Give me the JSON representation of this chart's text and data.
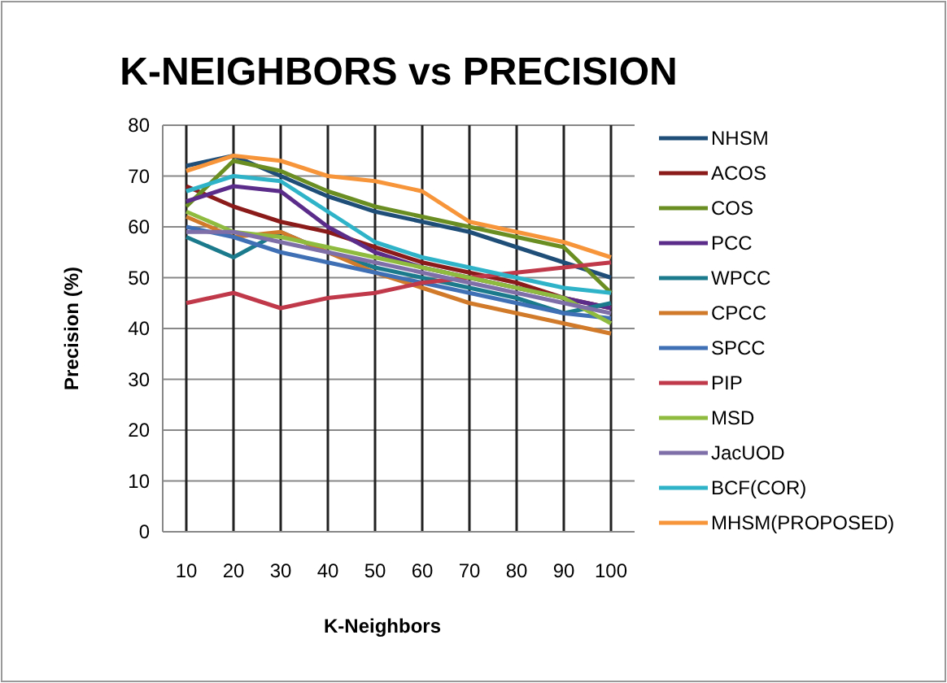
{
  "chart_data": {
    "type": "line",
    "title": "K-NEIGHBORS vs PRECISION",
    "xlabel": "K-Neighbors",
    "ylabel": "Precision (%)",
    "categories": [
      "10",
      "20",
      "30",
      "40",
      "50",
      "60",
      "70",
      "80",
      "90",
      "100"
    ],
    "ylim": [
      0,
      80
    ],
    "yticks": [
      0,
      10,
      20,
      30,
      40,
      50,
      60,
      70,
      80
    ],
    "grid": true,
    "legend": "right",
    "marker": "none",
    "line_style": "solid",
    "series": [
      {
        "name": "NHSM",
        "color": "#1f4e79",
        "values": [
          72,
          74,
          70,
          66,
          63,
          61,
          59,
          56,
          53,
          50
        ]
      },
      {
        "name": "ACOS",
        "color": "#8b1a1a",
        "values": [
          68,
          64,
          61,
          59,
          56,
          53,
          51,
          49,
          46,
          44
        ]
      },
      {
        "name": "COS",
        "color": "#6b8e23",
        "values": [
          64,
          73,
          71,
          67,
          64,
          62,
          60,
          58,
          56,
          47
        ]
      },
      {
        "name": "PCC",
        "color": "#5b2c8a",
        "values": [
          65,
          68,
          67,
          60,
          55,
          52,
          50,
          48,
          46,
          44
        ]
      },
      {
        "name": "WPCC",
        "color": "#1b7a8c",
        "values": [
          58,
          54,
          59,
          55,
          52,
          50,
          48,
          46,
          43,
          45
        ]
      },
      {
        "name": "CPCC",
        "color": "#d07a2a",
        "values": [
          62,
          58,
          59,
          55,
          51,
          48,
          45,
          43,
          41,
          39
        ]
      },
      {
        "name": "SPCC",
        "color": "#3f6fb5",
        "values": [
          60,
          58,
          55,
          53,
          51,
          49,
          47,
          45,
          43,
          42
        ]
      },
      {
        "name": "PIP",
        "color": "#c0394a",
        "values": [
          45,
          47,
          44,
          46,
          47,
          49,
          50,
          51,
          52,
          53
        ]
      },
      {
        "name": "MSD",
        "color": "#8fbc3f",
        "values": [
          63,
          59,
          58,
          56,
          54,
          52,
          50,
          48,
          46,
          41
        ]
      },
      {
        "name": "JacUOD",
        "color": "#7e6fa8",
        "values": [
          59,
          59,
          57,
          55,
          53,
          51,
          49,
          47,
          45,
          43
        ]
      },
      {
        "name": "BCF(COR)",
        "color": "#2fb3c9",
        "values": [
          67,
          70,
          69,
          63,
          57,
          54,
          52,
          50,
          48,
          47
        ]
      },
      {
        "name": "MHSM(PROPOSED)",
        "color": "#f7953b",
        "values": [
          71,
          74,
          73,
          70,
          69,
          67,
          61,
          59,
          57,
          54
        ]
      }
    ]
  }
}
